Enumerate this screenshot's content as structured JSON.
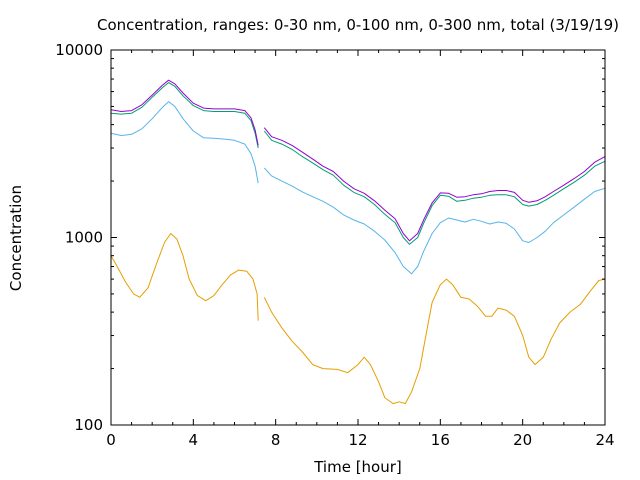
{
  "chart_data": {
    "type": "line",
    "title": "Concentration, ranges: 0-30 nm, 0-100 nm, 0-300 nm, total (3/19/19)",
    "xlabel": "Time [hour]",
    "ylabel": "Concentration",
    "xlim": [
      0,
      24
    ],
    "ylim": [
      100,
      10000
    ],
    "yscale": "log",
    "grid": false,
    "legend": "none",
    "xticks": [
      0,
      4,
      8,
      12,
      16,
      20,
      24
    ],
    "yticks": [
      100,
      1000,
      10000
    ],
    "xtick_labels": [
      "0",
      "4",
      "8",
      "12",
      "16",
      "20",
      "24"
    ],
    "ytick_labels": [
      "100",
      "1000",
      "10000"
    ],
    "series": [
      {
        "color": "#e69f00",
        "segments": [
          [
            [
              0,
              800
            ],
            [
              0.3,
              700
            ],
            [
              0.7,
              580
            ],
            [
              1.1,
              500
            ],
            [
              1.4,
              480
            ],
            [
              1.8,
              540
            ],
            [
              2.2,
              720
            ],
            [
              2.6,
              940
            ],
            [
              2.9,
              1050
            ],
            [
              3.2,
              980
            ],
            [
              3.5,
              800
            ],
            [
              3.8,
              600
            ],
            [
              4.2,
              490
            ],
            [
              4.6,
              460
            ],
            [
              5.0,
              490
            ],
            [
              5.4,
              560
            ],
            [
              5.8,
              630
            ],
            [
              6.2,
              670
            ],
            [
              6.6,
              660
            ],
            [
              6.9,
              600
            ],
            [
              7.1,
              500
            ],
            [
              7.15,
              360
            ]
          ],
          [
            [
              7.45,
              480
            ],
            [
              7.8,
              400
            ],
            [
              8.3,
              330
            ],
            [
              8.8,
              280
            ],
            [
              9.3,
              245
            ],
            [
              9.8,
              210
            ],
            [
              10.3,
              200
            ],
            [
              11.0,
              198
            ],
            [
              11.5,
              190
            ],
            [
              12.0,
              210
            ],
            [
              12.3,
              230
            ],
            [
              12.6,
              210
            ],
            [
              13.0,
              170
            ],
            [
              13.3,
              140
            ],
            [
              13.7,
              130
            ],
            [
              14.0,
              133
            ],
            [
              14.3,
              130
            ],
            [
              14.6,
              150
            ],
            [
              15.0,
              200
            ],
            [
              15.3,
              300
            ],
            [
              15.6,
              450
            ],
            [
              16.0,
              560
            ],
            [
              16.3,
              600
            ],
            [
              16.6,
              560
            ],
            [
              17.0,
              480
            ],
            [
              17.4,
              470
            ],
            [
              17.8,
              430
            ],
            [
              18.2,
              380
            ],
            [
              18.5,
              380
            ],
            [
              18.8,
              420
            ],
            [
              19.2,
              410
            ],
            [
              19.6,
              380
            ],
            [
              20.0,
              300
            ],
            [
              20.3,
              230
            ],
            [
              20.6,
              210
            ],
            [
              21.0,
              230
            ],
            [
              21.4,
              290
            ],
            [
              21.8,
              350
            ],
            [
              22.3,
              400
            ],
            [
              22.8,
              440
            ],
            [
              23.3,
              520
            ],
            [
              23.7,
              590
            ],
            [
              24.0,
              600
            ]
          ]
        ]
      },
      {
        "color": "#56b4e9",
        "segments": [
          [
            [
              0,
              3600
            ],
            [
              0.5,
              3500
            ],
            [
              1.0,
              3550
            ],
            [
              1.5,
              3800
            ],
            [
              2.0,
              4300
            ],
            [
              2.5,
              4950
            ],
            [
              2.8,
              5300
            ],
            [
              3.1,
              5000
            ],
            [
              3.5,
              4300
            ],
            [
              4.0,
              3700
            ],
            [
              4.5,
              3400
            ],
            [
              5.0,
              3380
            ],
            [
              5.5,
              3350
            ],
            [
              6.0,
              3300
            ],
            [
              6.5,
              3150
            ],
            [
              6.8,
              2800
            ],
            [
              7.0,
              2400
            ],
            [
              7.15,
              1950
            ]
          ],
          [
            [
              7.45,
              2350
            ],
            [
              7.8,
              2130
            ],
            [
              8.3,
              2000
            ],
            [
              8.8,
              1880
            ],
            [
              9.3,
              1750
            ],
            [
              9.8,
              1650
            ],
            [
              10.3,
              1560
            ],
            [
              10.8,
              1450
            ],
            [
              11.3,
              1320
            ],
            [
              11.8,
              1240
            ],
            [
              12.3,
              1180
            ],
            [
              12.8,
              1080
            ],
            [
              13.3,
              970
            ],
            [
              13.8,
              830
            ],
            [
              14.2,
              700
            ],
            [
              14.6,
              640
            ],
            [
              14.9,
              700
            ],
            [
              15.2,
              850
            ],
            [
              15.6,
              1050
            ],
            [
              16.0,
              1200
            ],
            [
              16.4,
              1270
            ],
            [
              16.8,
              1240
            ],
            [
              17.2,
              1210
            ],
            [
              17.6,
              1250
            ],
            [
              18.0,
              1220
            ],
            [
              18.4,
              1180
            ],
            [
              18.8,
              1210
            ],
            [
              19.2,
              1190
            ],
            [
              19.6,
              1110
            ],
            [
              20.0,
              960
            ],
            [
              20.3,
              940
            ],
            [
              20.7,
              1000
            ],
            [
              21.1,
              1080
            ],
            [
              21.5,
              1200
            ],
            [
              22.0,
              1320
            ],
            [
              22.5,
              1450
            ],
            [
              23.0,
              1600
            ],
            [
              23.5,
              1760
            ],
            [
              24.0,
              1830
            ]
          ]
        ]
      },
      {
        "color": "#009e73",
        "segments": [
          [
            [
              0,
              4600
            ],
            [
              0.5,
              4550
            ],
            [
              1.0,
              4600
            ],
            [
              1.5,
              4950
            ],
            [
              2.0,
              5600
            ],
            [
              2.5,
              6300
            ],
            [
              2.8,
              6700
            ],
            [
              3.1,
              6400
            ],
            [
              3.5,
              5700
            ],
            [
              4.0,
              5050
            ],
            [
              4.5,
              4750
            ],
            [
              5.0,
              4700
            ],
            [
              5.5,
              4700
            ],
            [
              6.0,
              4700
            ],
            [
              6.5,
              4600
            ],
            [
              6.8,
              4200
            ],
            [
              7.0,
              3600
            ],
            [
              7.15,
              3000
            ]
          ],
          [
            [
              7.45,
              3700
            ],
            [
              7.8,
              3300
            ],
            [
              8.3,
              3150
            ],
            [
              8.8,
              2950
            ],
            [
              9.3,
              2700
            ],
            [
              9.8,
              2500
            ],
            [
              10.3,
              2300
            ],
            [
              10.8,
              2150
            ],
            [
              11.3,
              1900
            ],
            [
              11.8,
              1740
            ],
            [
              12.3,
              1650
            ],
            [
              12.8,
              1500
            ],
            [
              13.3,
              1330
            ],
            [
              13.8,
              1200
            ],
            [
              14.2,
              1000
            ],
            [
              14.5,
              920
            ],
            [
              14.9,
              1000
            ],
            [
              15.2,
              1200
            ],
            [
              15.6,
              1480
            ],
            [
              16.0,
              1680
            ],
            [
              16.4,
              1660
            ],
            [
              16.8,
              1560
            ],
            [
              17.2,
              1580
            ],
            [
              17.6,
              1620
            ],
            [
              18.0,
              1640
            ],
            [
              18.4,
              1680
            ],
            [
              18.8,
              1690
            ],
            [
              19.2,
              1690
            ],
            [
              19.6,
              1650
            ],
            [
              20.0,
              1500
            ],
            [
              20.3,
              1470
            ],
            [
              20.7,
              1500
            ],
            [
              21.1,
              1580
            ],
            [
              21.5,
              1680
            ],
            [
              22.0,
              1820
            ],
            [
              22.5,
              1970
            ],
            [
              23.0,
              2150
            ],
            [
              23.5,
              2400
            ],
            [
              24.0,
              2550
            ]
          ]
        ]
      },
      {
        "color": "#9400d3",
        "segments": [
          [
            [
              0,
              4800
            ],
            [
              0.5,
              4700
            ],
            [
              1.0,
              4750
            ],
            [
              1.5,
              5100
            ],
            [
              2.0,
              5750
            ],
            [
              2.5,
              6500
            ],
            [
              2.8,
              6900
            ],
            [
              3.1,
              6600
            ],
            [
              3.5,
              5900
            ],
            [
              4.0,
              5200
            ],
            [
              4.5,
              4900
            ],
            [
              5.0,
              4850
            ],
            [
              5.5,
              4850
            ],
            [
              6.0,
              4850
            ],
            [
              6.5,
              4750
            ],
            [
              6.8,
              4350
            ],
            [
              7.0,
              3750
            ],
            [
              7.15,
              3100
            ]
          ],
          [
            [
              7.45,
              3850
            ],
            [
              7.8,
              3450
            ],
            [
              8.3,
              3300
            ],
            [
              8.8,
              3100
            ],
            [
              9.3,
              2850
            ],
            [
              9.8,
              2620
            ],
            [
              10.3,
              2400
            ],
            [
              10.8,
              2250
            ],
            [
              11.3,
              2000
            ],
            [
              11.8,
              1820
            ],
            [
              12.3,
              1720
            ],
            [
              12.8,
              1570
            ],
            [
              13.3,
              1400
            ],
            [
              13.8,
              1260
            ],
            [
              14.2,
              1050
            ],
            [
              14.5,
              960
            ],
            [
              14.9,
              1050
            ],
            [
              15.2,
              1250
            ],
            [
              15.6,
              1530
            ],
            [
              16.0,
              1730
            ],
            [
              16.4,
              1720
            ],
            [
              16.8,
              1640
            ],
            [
              17.2,
              1650
            ],
            [
              17.6,
              1690
            ],
            [
              18.0,
              1710
            ],
            [
              18.4,
              1760
            ],
            [
              18.8,
              1780
            ],
            [
              19.2,
              1780
            ],
            [
              19.6,
              1740
            ],
            [
              20.0,
              1580
            ],
            [
              20.3,
              1540
            ],
            [
              20.7,
              1570
            ],
            [
              21.1,
              1650
            ],
            [
              21.5,
              1760
            ],
            [
              22.0,
              1900
            ],
            [
              22.5,
              2060
            ],
            [
              23.0,
              2250
            ],
            [
              23.5,
              2520
            ],
            [
              24.0,
              2700
            ]
          ]
        ]
      }
    ]
  }
}
